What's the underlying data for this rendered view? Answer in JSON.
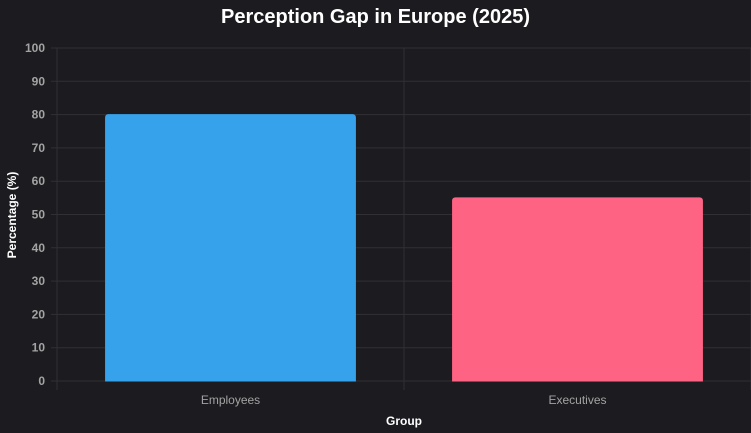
{
  "chart_data": {
    "type": "bar",
    "title": "Perception Gap in Europe (2025)",
    "xlabel": "Group",
    "ylabel": "Percentage (%)",
    "categories": [
      "Employees",
      "Executives"
    ],
    "values": [
      80,
      55
    ],
    "colors": [
      "#36a2eb",
      "#ff6384"
    ],
    "ylim": [
      0,
      100
    ],
    "yticks": [
      "0",
      "10",
      "20",
      "30",
      "40",
      "50",
      "60",
      "70",
      "80",
      "90",
      "100"
    ],
    "grid": true,
    "legend": "none"
  }
}
